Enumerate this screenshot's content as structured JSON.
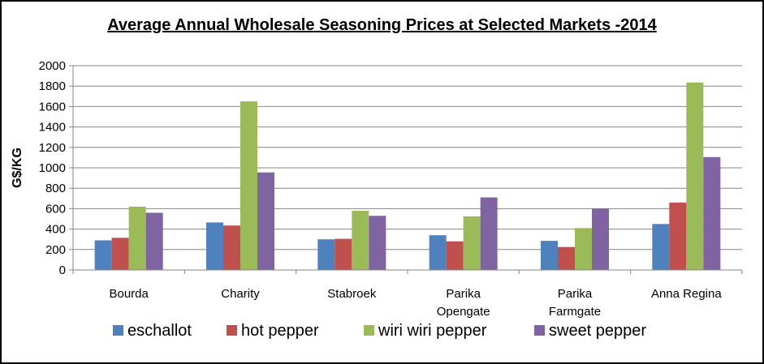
{
  "chart_data": {
    "type": "bar",
    "title": "Average Annual  Wholesale Seasoning Prices at Selected Markets -2014",
    "ylabel": "G$/KG",
    "xlabel": "",
    "ylim": [
      0,
      2000
    ],
    "yticks": [
      "0",
      "200",
      "400",
      "600",
      "800",
      "1000",
      "1200",
      "1400",
      "1600",
      "1800",
      "2000"
    ],
    "grid": true,
    "legend_position": "bottom",
    "categories": [
      [
        "Bourda"
      ],
      [
        "Charity"
      ],
      [
        "Stabroek"
      ],
      [
        "Parika",
        "Opengate"
      ],
      [
        "Parika",
        "Farmgate"
      ],
      [
        "Anna Regina"
      ]
    ],
    "series": [
      {
        "name": "eschallot",
        "color": "#4F81BD",
        "values": [
          290,
          465,
          300,
          340,
          285,
          450
        ]
      },
      {
        "name": "hot pepper",
        "color": "#C0504D",
        "values": [
          315,
          435,
          305,
          280,
          225,
          660
        ]
      },
      {
        "name": "wiri wiri pepper",
        "color": "#9BBB59",
        "values": [
          620,
          1650,
          580,
          525,
          410,
          1835
        ]
      },
      {
        "name": "sweet pepper",
        "color": "#8064A2",
        "values": [
          560,
          955,
          530,
          710,
          600,
          1105
        ]
      }
    ]
  }
}
